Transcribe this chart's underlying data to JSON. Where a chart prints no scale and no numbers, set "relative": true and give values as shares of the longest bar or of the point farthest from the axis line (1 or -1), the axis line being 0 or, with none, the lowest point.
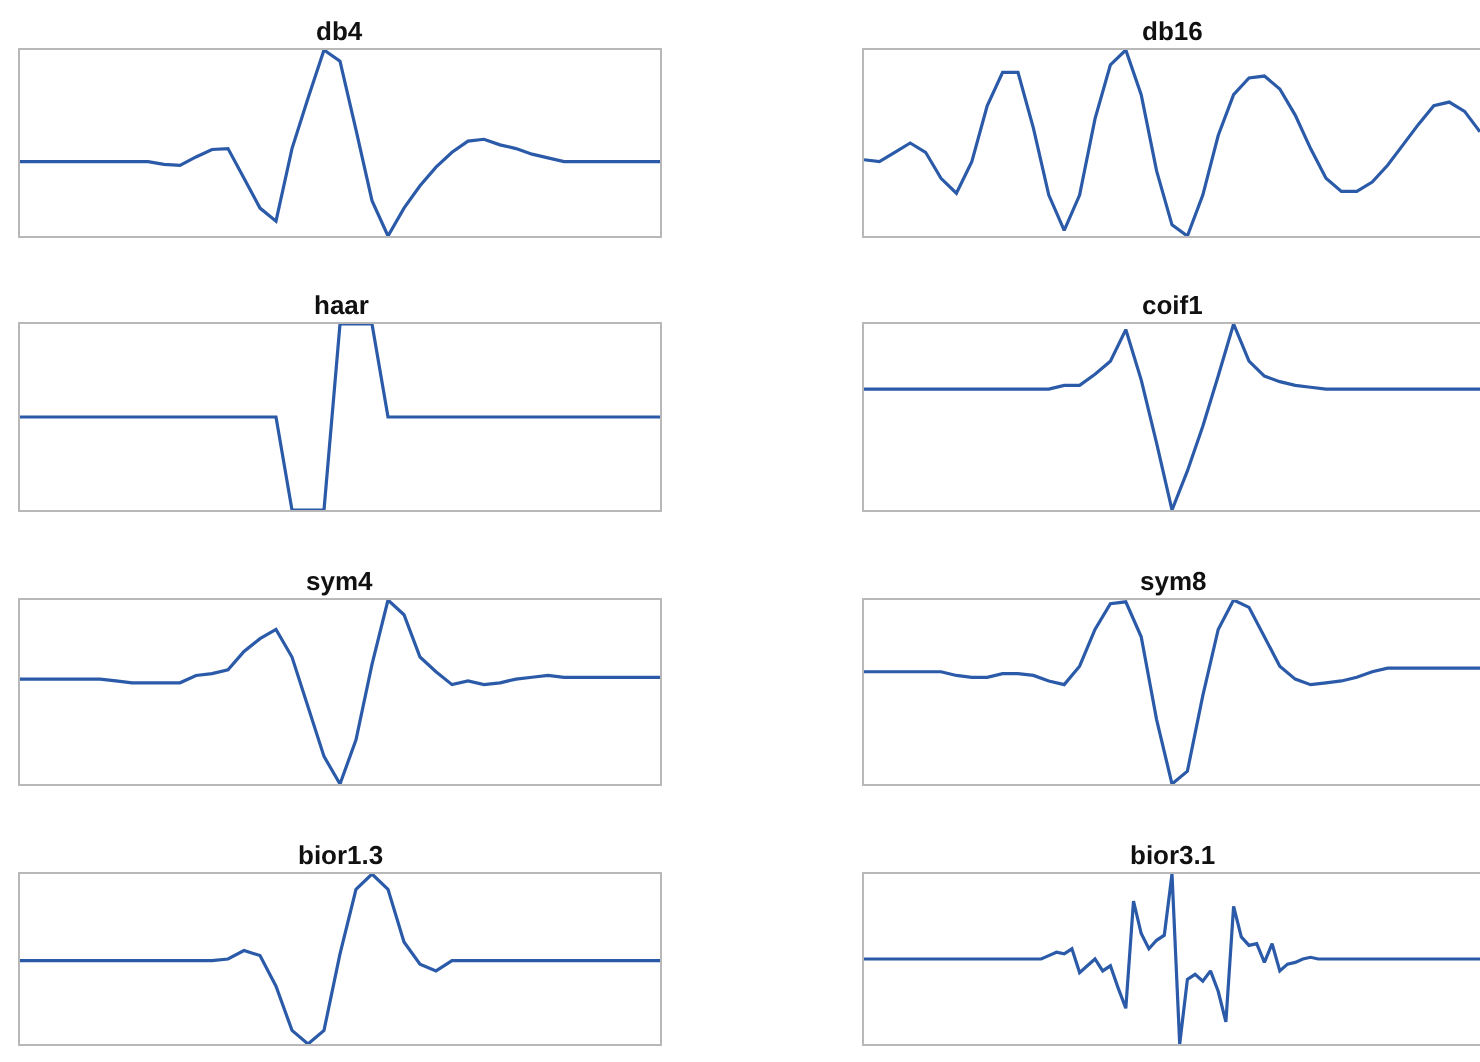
{
  "chart_data": [
    {
      "type": "line",
      "title": "db4",
      "relative": true,
      "categories": [
        null,
        null,
        null,
        null,
        null,
        null,
        null,
        null,
        null,
        null,
        null,
        null,
        null,
        null,
        null,
        null,
        null,
        null,
        null,
        null,
        null,
        null,
        null,
        null,
        null,
        null,
        null,
        null,
        null,
        null,
        null,
        null,
        null,
        null,
        null,
        null,
        null,
        null,
        null,
        null,
        null
      ],
      "series": [
        {
          "color": "#2a5aa8",
          "values": [
            0.4,
            0.4,
            0.4,
            0.4,
            0.4,
            0.4,
            0.4,
            0.4,
            0.4,
            0.385,
            0.38,
            0.425,
            0.465,
            0.47,
            0.31,
            0.15,
            0.08,
            0.47,
            0.74,
            1.0,
            0.94,
            0.57,
            0.19,
            0.0,
            0.15,
            0.27,
            0.37,
            0.45,
            0.51,
            0.52,
            0.49,
            0.47,
            0.44,
            0.42,
            0.4,
            0.4,
            0.4,
            0.4,
            0.4,
            0.4,
            0.4
          ]
        }
      ]
    },
    {
      "type": "line",
      "title": "db16",
      "relative": true,
      "categories": [
        null,
        null,
        null,
        null,
        null,
        null,
        null,
        null,
        null,
        null,
        null,
        null,
        null,
        null,
        null,
        null,
        null,
        null,
        null,
        null,
        null,
        null,
        null,
        null,
        null,
        null,
        null,
        null,
        null,
        null,
        null,
        null,
        null,
        null,
        null,
        null,
        null,
        null,
        null,
        null,
        null
      ],
      "series": [
        {
          "color": "#2a5aa8",
          "values": [
            0.41,
            0.4,
            0.45,
            0.5,
            0.45,
            0.31,
            0.23,
            0.4,
            0.7,
            0.88,
            0.88,
            0.58,
            0.22,
            0.03,
            0.22,
            0.63,
            0.92,
            1.0,
            0.76,
            0.35,
            0.06,
            0.0,
            0.22,
            0.54,
            0.76,
            0.85,
            0.86,
            0.79,
            0.65,
            0.47,
            0.31,
            0.24,
            0.24,
            0.29,
            0.38,
            0.49,
            0.6,
            0.7,
            0.72,
            0.67,
            0.56
          ]
        }
      ]
    },
    {
      "type": "line",
      "title": "haar",
      "relative": true,
      "categories": [
        null,
        null,
        null,
        null,
        null,
        null,
        null,
        null,
        null,
        null,
        null,
        null,
        null,
        null,
        null,
        null,
        null,
        null,
        null,
        null,
        null,
        null,
        null,
        null,
        null,
        null,
        null,
        null,
        null,
        null,
        null,
        null,
        null,
        null,
        null,
        null,
        null,
        null,
        null,
        null,
        null
      ],
      "series": [
        {
          "color": "#2a5aa8",
          "values": [
            0.5,
            0.5,
            0.5,
            0.5,
            0.5,
            0.5,
            0.5,
            0.5,
            0.5,
            0.5,
            0.5,
            0.5,
            0.5,
            0.5,
            0.5,
            0.5,
            0.5,
            0.0,
            0.0,
            0.0,
            1.0,
            1.0,
            1.0,
            0.5,
            0.5,
            0.5,
            0.5,
            0.5,
            0.5,
            0.5,
            0.5,
            0.5,
            0.5,
            0.5,
            0.5,
            0.5,
            0.5,
            0.5,
            0.5,
            0.5,
            0.5
          ]
        }
      ]
    },
    {
      "type": "line",
      "title": "coif1",
      "relative": true,
      "categories": [
        null,
        null,
        null,
        null,
        null,
        null,
        null,
        null,
        null,
        null,
        null,
        null,
        null,
        null,
        null,
        null,
        null,
        null,
        null,
        null,
        null,
        null,
        null,
        null,
        null,
        null,
        null,
        null,
        null,
        null,
        null,
        null,
        null,
        null,
        null,
        null,
        null,
        null,
        null,
        null,
        null
      ],
      "series": [
        {
          "color": "#2a5aa8",
          "values": [
            0.65,
            0.65,
            0.65,
            0.65,
            0.65,
            0.65,
            0.65,
            0.65,
            0.65,
            0.65,
            0.65,
            0.65,
            0.65,
            0.67,
            0.67,
            0.73,
            0.8,
            0.97,
            0.7,
            0.36,
            0.0,
            0.21,
            0.45,
            0.72,
            1.0,
            0.8,
            0.72,
            0.69,
            0.67,
            0.66,
            0.65,
            0.65,
            0.65,
            0.65,
            0.65,
            0.65,
            0.65,
            0.65,
            0.65,
            0.65,
            0.65
          ]
        }
      ]
    },
    {
      "type": "line",
      "title": "sym4",
      "relative": true,
      "categories": [
        null,
        null,
        null,
        null,
        null,
        null,
        null,
        null,
        null,
        null,
        null,
        null,
        null,
        null,
        null,
        null,
        null,
        null,
        null,
        null,
        null,
        null,
        null,
        null,
        null,
        null,
        null,
        null,
        null,
        null,
        null,
        null,
        null,
        null,
        null,
        null,
        null,
        null,
        null,
        null,
        null
      ],
      "series": [
        {
          "color": "#2a5aa8",
          "values": [
            0.57,
            0.57,
            0.57,
            0.57,
            0.57,
            0.57,
            0.56,
            0.55,
            0.55,
            0.55,
            0.55,
            0.59,
            0.6,
            0.62,
            0.72,
            0.79,
            0.84,
            0.69,
            0.42,
            0.15,
            0.0,
            0.24,
            0.65,
            1.0,
            0.92,
            0.69,
            0.61,
            0.54,
            0.56,
            0.54,
            0.55,
            0.57,
            0.58,
            0.59,
            0.58,
            0.58,
            0.58,
            0.58,
            0.58,
            0.58,
            0.58
          ]
        }
      ]
    },
    {
      "type": "line",
      "title": "sym8",
      "relative": true,
      "categories": [
        null,
        null,
        null,
        null,
        null,
        null,
        null,
        null,
        null,
        null,
        null,
        null,
        null,
        null,
        null,
        null,
        null,
        null,
        null,
        null,
        null,
        null,
        null,
        null,
        null,
        null,
        null,
        null,
        null,
        null,
        null,
        null,
        null,
        null,
        null,
        null,
        null,
        null,
        null,
        null,
        null
      ],
      "series": [
        {
          "color": "#2a5aa8",
          "values": [
            0.61,
            0.61,
            0.61,
            0.61,
            0.61,
            0.61,
            0.59,
            0.58,
            0.58,
            0.6,
            0.6,
            0.59,
            0.56,
            0.54,
            0.64,
            0.84,
            0.98,
            0.99,
            0.8,
            0.35,
            0.0,
            0.07,
            0.48,
            0.84,
            1.0,
            0.96,
            0.8,
            0.64,
            0.57,
            0.54,
            0.55,
            0.56,
            0.58,
            0.61,
            0.63,
            0.63,
            0.63,
            0.63,
            0.63,
            0.63,
            0.63
          ]
        }
      ]
    },
    {
      "type": "line",
      "title": "bior1.3",
      "relative": true,
      "categories": [
        null,
        null,
        null,
        null,
        null,
        null,
        null,
        null,
        null,
        null,
        null,
        null,
        null,
        null,
        null,
        null,
        null,
        null,
        null,
        null,
        null,
        null,
        null,
        null,
        null,
        null,
        null,
        null,
        null,
        null,
        null,
        null,
        null,
        null,
        null,
        null,
        null,
        null,
        null,
        null,
        null
      ],
      "series": [
        {
          "color": "#2a5aa8",
          "values": [
            0.49,
            0.49,
            0.49,
            0.49,
            0.49,
            0.49,
            0.49,
            0.49,
            0.49,
            0.49,
            0.49,
            0.49,
            0.49,
            0.5,
            0.55,
            0.52,
            0.34,
            0.08,
            0.0,
            0.08,
            0.53,
            0.91,
            1.0,
            0.91,
            0.6,
            0.47,
            0.43,
            0.49,
            0.49,
            0.49,
            0.49,
            0.49,
            0.49,
            0.49,
            0.49,
            0.49,
            0.49,
            0.49,
            0.49,
            0.49,
            0.49
          ]
        }
      ]
    },
    {
      "type": "line",
      "title": "bior3.1",
      "relative": true,
      "categories": [
        null,
        null,
        null,
        null,
        null,
        null,
        null,
        null,
        null,
        null,
        null,
        null,
        null,
        null,
        null,
        null,
        null,
        null,
        null,
        null,
        null,
        null,
        null,
        null,
        null,
        null,
        null,
        null,
        null,
        null,
        null,
        null,
        null,
        null,
        null,
        null,
        null,
        null,
        null,
        null,
        null,
        null,
        null,
        null,
        null,
        null,
        null,
        null,
        null,
        null,
        null,
        null,
        null,
        null,
        null,
        null,
        null,
        null,
        null,
        null,
        null,
        null,
        null,
        null,
        null,
        null,
        null,
        null,
        null,
        null,
        null,
        null,
        null,
        null,
        null,
        null,
        null,
        null,
        null,
        null,
        null
      ],
      "series": [
        {
          "color": "#2a5aa8",
          "values": [
            0.5,
            0.5,
            0.5,
            0.5,
            0.5,
            0.5,
            0.5,
            0.5,
            0.5,
            0.5,
            0.5,
            0.5,
            0.5,
            0.5,
            0.5,
            0.5,
            0.5,
            0.5,
            0.5,
            0.5,
            0.5,
            0.5,
            0.5,
            0.5,
            0.52,
            0.54,
            0.53,
            0.56,
            0.42,
            0.46,
            0.5,
            0.43,
            0.46,
            0.33,
            0.21,
            0.84,
            0.65,
            0.56,
            0.61,
            0.64,
            1.0,
            0.0,
            0.38,
            0.41,
            0.37,
            0.43,
            0.31,
            0.13,
            0.81,
            0.63,
            0.58,
            0.59,
            0.48,
            0.59,
            0.43,
            0.47,
            0.48,
            0.5,
            0.51,
            0.5,
            0.5,
            0.5,
            0.5,
            0.5,
            0.5,
            0.5,
            0.5,
            0.5,
            0.5,
            0.5,
            0.5,
            0.5,
            0.5,
            0.5,
            0.5,
            0.5,
            0.5,
            0.5,
            0.5,
            0.5,
            0.5
          ]
        }
      ]
    }
  ]
}
